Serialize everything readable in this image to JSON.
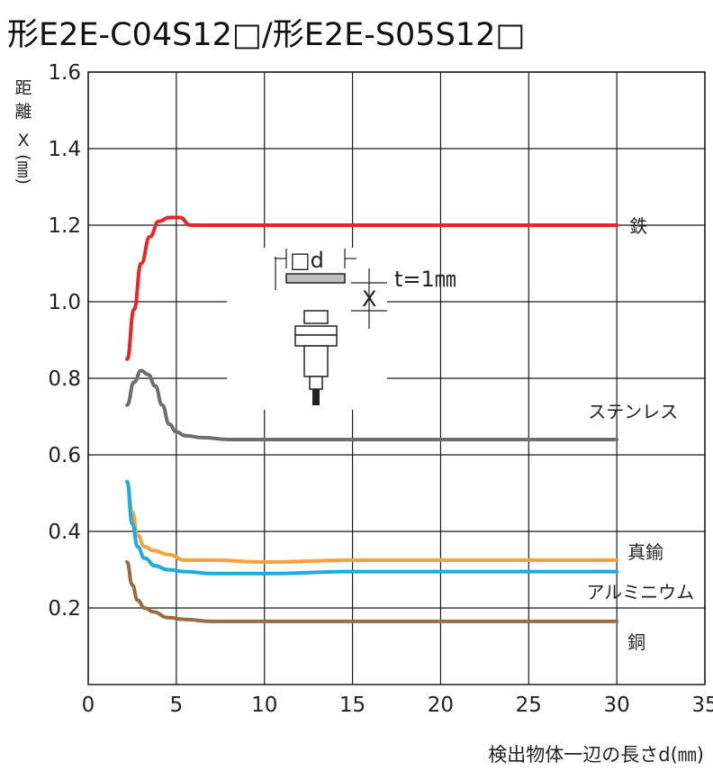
{
  "chart_data": {
    "type": "line",
    "title": "形E2E-C04S12□/形E2E-S05S12□",
    "ylabel": "距離X(㎜)",
    "xlabel": "検出物体一辺の長さd(㎜)",
    "xlim": [
      0,
      35
    ],
    "ylim": [
      0,
      1.6
    ],
    "xticks": [
      "0",
      "5",
      "10",
      "15",
      "20",
      "25",
      "30",
      "35"
    ],
    "yticks": [
      "0.2",
      "0.4",
      "0.6",
      "0.8",
      "1.0",
      "1.2",
      "1.4",
      "1.6"
    ],
    "grid": true,
    "series": [
      {
        "name": "鉄",
        "color": "#e8252a",
        "x": [
          2.2,
          2.6,
          3.0,
          3.5,
          4.0,
          4.6,
          5.2,
          5.8,
          6.5,
          8,
          10,
          15,
          20,
          25,
          30
        ],
        "y": [
          0.85,
          0.98,
          1.1,
          1.17,
          1.21,
          1.22,
          1.22,
          1.2,
          1.2,
          1.2,
          1.2,
          1.2,
          1.2,
          1.2,
          1.2
        ]
      },
      {
        "name": "ステンレス",
        "color": "#6d6e70",
        "x": [
          2.2,
          2.6,
          3.0,
          3.4,
          3.8,
          4.2,
          4.6,
          5.0,
          5.5,
          6.5,
          8,
          10,
          15,
          20,
          25,
          30
        ],
        "y": [
          0.73,
          0.79,
          0.82,
          0.81,
          0.78,
          0.73,
          0.68,
          0.66,
          0.65,
          0.645,
          0.64,
          0.64,
          0.64,
          0.64,
          0.64,
          0.64
        ]
      },
      {
        "name": "真鍮",
        "color": "#f6a23a",
        "x": [
          2.2,
          2.5,
          2.8,
          3.2,
          3.7,
          4.5,
          5.5,
          7,
          10,
          15,
          20,
          25,
          30
        ],
        "y": [
          0.53,
          0.45,
          0.39,
          0.36,
          0.35,
          0.34,
          0.325,
          0.325,
          0.32,
          0.325,
          0.325,
          0.325,
          0.325
        ]
      },
      {
        "name": "アルミニウム",
        "color": "#1aaee0",
        "x": [
          2.2,
          2.5,
          2.8,
          3.2,
          3.8,
          4.5,
          5.5,
          7,
          10,
          15,
          20,
          25,
          30
        ],
        "y": [
          0.53,
          0.42,
          0.36,
          0.33,
          0.31,
          0.3,
          0.295,
          0.29,
          0.29,
          0.295,
          0.295,
          0.295,
          0.295
        ]
      },
      {
        "name": "銅",
        "color": "#9b6a44",
        "x": [
          2.2,
          2.5,
          2.8,
          3.2,
          3.7,
          4.5,
          5.5,
          7,
          10,
          15,
          20,
          25,
          30
        ],
        "y": [
          0.32,
          0.26,
          0.22,
          0.2,
          0.19,
          0.175,
          0.17,
          0.165,
          0.165,
          0.165,
          0.165,
          0.165,
          0.165
        ]
      }
    ]
  },
  "inset": {
    "d_label": "□d",
    "t_label": "t=1㎜",
    "x_label": "X"
  }
}
